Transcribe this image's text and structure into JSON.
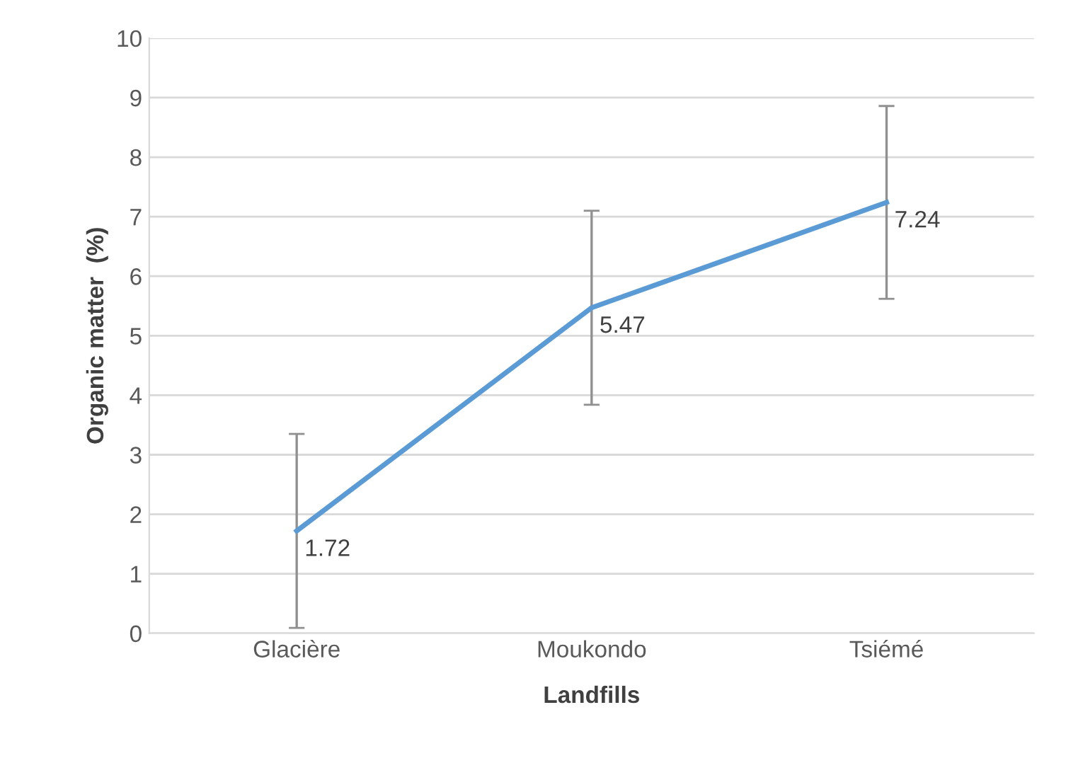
{
  "chart_data": {
    "type": "line",
    "xlabel": "Landfills",
    "ylabel": "Organic matter  (%)",
    "categories": [
      "Glacière",
      "Moukondo",
      "Tsiémé"
    ],
    "series": [
      {
        "color": "#5b9bd5",
        "values": [
          1.72,
          5.47,
          7.24
        ],
        "errors": [
          1.63,
          1.63,
          1.62
        ]
      }
    ],
    "ylim": [
      0,
      10
    ],
    "yticks": [
      0,
      1,
      2,
      3,
      4,
      5,
      6,
      7,
      8,
      9,
      10
    ],
    "grid": "y",
    "data_labels": true,
    "marker": "none",
    "line_style": "solid"
  }
}
